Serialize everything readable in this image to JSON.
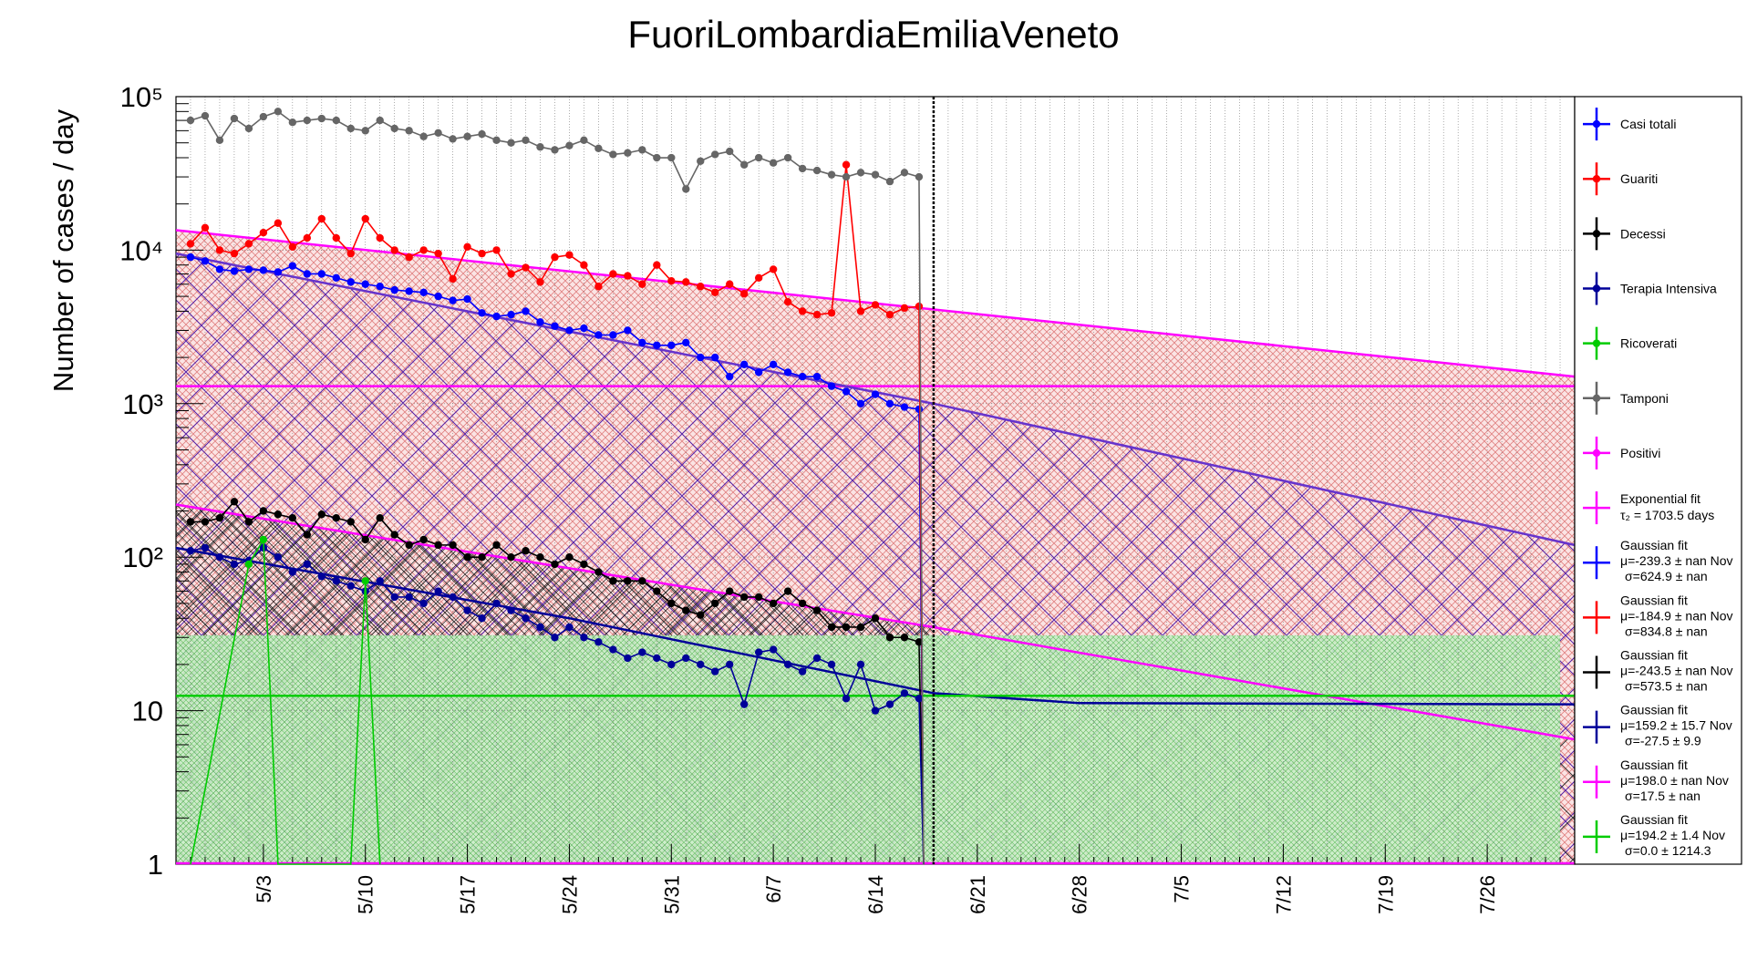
{
  "chart_data": {
    "type": "line",
    "title": "FuoriLombardiaEmiliaVeneto",
    "xlabel": "",
    "ylabel": "Number of cases / day",
    "y_scale": "log",
    "ylim": [
      1,
      100000
    ],
    "xlim": [
      "4/27",
      "8/1"
    ],
    "y_ticks": [
      "1",
      "10",
      "10²",
      "10³",
      "10⁴",
      "10⁵"
    ],
    "x_ticks": [
      "5/3",
      "5/10",
      "5/17",
      "5/24",
      "5/31",
      "6/7",
      "6/14",
      "6/21",
      "6/28",
      "7/5",
      "7/12",
      "7/19",
      "7/26"
    ],
    "grid": true,
    "legend_position": "right",
    "vertical_marker": "6/18",
    "series": [
      {
        "name": "Casi totali",
        "color": "#0000ff",
        "x": [
          "4/28",
          "4/29",
          "4/30",
          "5/1",
          "5/2",
          "5/3",
          "5/4",
          "5/5",
          "5/6",
          "5/7",
          "5/8",
          "5/9",
          "5/10",
          "5/11",
          "5/12",
          "5/13",
          "5/14",
          "5/15",
          "5/16",
          "5/17",
          "5/18",
          "5/19",
          "5/20",
          "5/21",
          "5/22",
          "5/23",
          "5/24",
          "5/25",
          "5/26",
          "5/27",
          "5/28",
          "5/29",
          "5/30",
          "5/31",
          "6/1",
          "6/2",
          "6/3",
          "6/4",
          "6/5",
          "6/6",
          "6/7",
          "6/8",
          "6/9",
          "6/10",
          "6/11",
          "6/12",
          "6/13",
          "6/14",
          "6/15",
          "6/16",
          "6/17"
        ],
        "y": [
          9000,
          8500,
          7500,
          7300,
          7500,
          7400,
          7200,
          7900,
          7000,
          7000,
          6600,
          6200,
          6000,
          5800,
          5500,
          5400,
          5300,
          5000,
          4700,
          4800,
          3900,
          3700,
          3800,
          4000,
          3400,
          3200,
          3000,
          3100,
          2800,
          2800,
          3000,
          2500,
          2400,
          2400,
          2500,
          2000,
          2000,
          1500,
          1800,
          1600,
          1800,
          1600,
          1500,
          1500,
          1300,
          1200,
          1000,
          1150,
          1000,
          950,
          920
        ]
      },
      {
        "name": "Guariti",
        "color": "#ff0000",
        "x": [
          "4/28",
          "4/29",
          "4/30",
          "5/1",
          "5/2",
          "5/3",
          "5/4",
          "5/5",
          "5/6",
          "5/7",
          "5/8",
          "5/9",
          "5/10",
          "5/11",
          "5/12",
          "5/13",
          "5/14",
          "5/15",
          "5/16",
          "5/17",
          "5/18",
          "5/19",
          "5/20",
          "5/21",
          "5/22",
          "5/23",
          "5/24",
          "5/25",
          "5/26",
          "5/27",
          "5/28",
          "5/29",
          "5/30",
          "5/31",
          "6/1",
          "6/2",
          "6/3",
          "6/4",
          "6/5",
          "6/6",
          "6/7",
          "6/8",
          "6/9",
          "6/10",
          "6/11",
          "6/12",
          "6/13",
          "6/14",
          "6/15",
          "6/16",
          "6/17"
        ],
        "y": [
          11000,
          14000,
          10000,
          9500,
          11000,
          13000,
          15000,
          10500,
          12000,
          16000,
          12000,
          9500,
          16000,
          12000,
          10000,
          9000,
          10000,
          9500,
          6500,
          10500,
          9500,
          10000,
          7000,
          7700,
          6200,
          9000,
          9300,
          8000,
          5800,
          7000,
          6800,
          6000,
          8000,
          6300,
          6200,
          5800,
          5300,
          6000,
          5200,
          6600,
          7500,
          4600,
          4000,
          3800,
          3900,
          36000,
          4000,
          4400,
          3800,
          4200,
          4300
        ]
      },
      {
        "name": "Decessi",
        "color": "#000000",
        "x": [
          "4/28",
          "4/29",
          "4/30",
          "5/1",
          "5/2",
          "5/3",
          "5/4",
          "5/5",
          "5/6",
          "5/7",
          "5/8",
          "5/9",
          "5/10",
          "5/11",
          "5/12",
          "5/13",
          "5/14",
          "5/15",
          "5/16",
          "5/17",
          "5/18",
          "5/19",
          "5/20",
          "5/21",
          "5/22",
          "5/23",
          "5/24",
          "5/25",
          "5/26",
          "5/27",
          "5/28",
          "5/29",
          "5/30",
          "5/31",
          "6/1",
          "6/2",
          "6/3",
          "6/4",
          "6/5",
          "6/6",
          "6/7",
          "6/8",
          "6/9",
          "6/10",
          "6/11",
          "6/12",
          "6/13",
          "6/14",
          "6/15",
          "6/16",
          "6/17"
        ],
        "y": [
          170,
          170,
          180,
          230,
          170,
          200,
          190,
          180,
          140,
          190,
          180,
          170,
          130,
          180,
          140,
          120,
          130,
          120,
          120,
          100,
          100,
          120,
          100,
          110,
          100,
          90,
          100,
          90,
          80,
          70,
          70,
          70,
          60,
          50,
          45,
          42,
          50,
          60,
          55,
          55,
          50,
          60,
          50,
          45,
          35,
          35,
          35,
          40,
          30,
          30,
          28
        ]
      },
      {
        "name": "Terapia Intensiva",
        "color": "#000099",
        "x": [
          "4/28",
          "4/29",
          "4/30",
          "5/1",
          "5/2",
          "5/3",
          "5/4",
          "5/5",
          "5/6",
          "5/7",
          "5/8",
          "5/9",
          "5/10",
          "5/11",
          "5/12",
          "5/13",
          "5/14",
          "5/15",
          "5/16",
          "5/17",
          "5/18",
          "5/19",
          "5/20",
          "5/21",
          "5/22",
          "5/23",
          "5/24",
          "5/25",
          "5/26",
          "5/27",
          "5/28",
          "5/29",
          "5/30",
          "5/31",
          "6/1",
          "6/2",
          "6/3",
          "6/4",
          "6/5",
          "6/6",
          "6/7",
          "6/8",
          "6/9",
          "6/10",
          "6/11",
          "6/12",
          "6/13",
          "6/14",
          "6/15",
          "6/16",
          "6/17"
        ],
        "y": [
          110,
          115,
          100,
          90,
          95,
          115,
          100,
          80,
          90,
          75,
          70,
          65,
          60,
          70,
          55,
          55,
          50,
          60,
          55,
          45,
          40,
          50,
          45,
          40,
          35,
          30,
          35,
          30,
          28,
          25,
          22,
          24,
          22,
          20,
          22,
          20,
          18,
          20,
          11,
          24,
          25,
          20,
          18,
          22,
          20,
          12,
          20,
          10,
          11,
          13,
          12
        ]
      },
      {
        "name": "Ricoverati",
        "color": "#00cc00",
        "x": [
          "4/28",
          "5/2",
          "5/3",
          "5/4",
          "5/9",
          "5/10",
          "5/11"
        ],
        "y": [
          1,
          90,
          130,
          1,
          1,
          70,
          1
        ]
      },
      {
        "name": "Tamponi",
        "color": "#666666",
        "x": [
          "4/28",
          "4/29",
          "4/30",
          "5/1",
          "5/2",
          "5/3",
          "5/4",
          "5/5",
          "5/6",
          "5/7",
          "5/8",
          "5/9",
          "5/10",
          "5/11",
          "5/12",
          "5/13",
          "5/14",
          "5/15",
          "5/16",
          "5/17",
          "5/18",
          "5/19",
          "5/20",
          "5/21",
          "5/22",
          "5/23",
          "5/24",
          "5/25",
          "5/26",
          "5/27",
          "5/28",
          "5/29",
          "5/30",
          "5/31",
          "6/1",
          "6/2",
          "6/3",
          "6/4",
          "6/5",
          "6/6",
          "6/7",
          "6/8",
          "6/9",
          "6/10",
          "6/11",
          "6/12",
          "6/13",
          "6/14",
          "6/15",
          "6/16",
          "6/17"
        ],
        "y": [
          70000,
          75000,
          52000,
          72000,
          62000,
          74000,
          80000,
          68000,
          70000,
          72000,
          70000,
          62000,
          60000,
          70000,
          62000,
          60000,
          55000,
          58000,
          53000,
          55000,
          57000,
          52000,
          50000,
          52000,
          47000,
          45000,
          48000,
          52000,
          46000,
          42000,
          43000,
          45000,
          40000,
          40000,
          25000,
          38000,
          42000,
          44000,
          36000,
          40000,
          37000,
          40000,
          34000,
          33000,
          31000,
          30000,
          32000,
          31000,
          28000,
          32000,
          30000
        ]
      }
    ],
    "fits": [
      {
        "name": "Exponential fit",
        "label": "τ₂ = 1703.5 days",
        "color": "#ff00ff",
        "x": [
          "4/27",
          "8/1"
        ],
        "y": [
          13500,
          1500
        ]
      },
      {
        "name": "Gaussian fit",
        "label": "μ=-239.3 ± nan Nov",
        "label2": "σ=624.9 ± nan",
        "color": "#0000ff"
      },
      {
        "name": "Gaussian fit",
        "label": "μ=-184.9 ± nan Nov",
        "label2": "σ=834.8 ± nan",
        "color": "#ff0000"
      },
      {
        "name": "Gaussian fit",
        "label": "μ=-243.5 ± nan Nov",
        "label2": "σ=573.5 ± nan",
        "color": "#000000"
      },
      {
        "name": "Gaussian fit",
        "label": "μ=159.2 ± 15.7 Nov",
        "label2": "σ=-27.5 ± 9.9",
        "color": "#000099"
      },
      {
        "name": "Gaussian fit",
        "label": "μ=198.0 ± nan Nov",
        "label2": "σ=17.5 ± nan",
        "color": "#ff00ff"
      },
      {
        "name": "Gaussian fit",
        "label": "μ=194.2 ± 1.4 Nov",
        "label2": "σ=0.0 ± 1214.3",
        "color": "#00cc00"
      }
    ],
    "fit_curves": [
      {
        "name": "positivi-fit",
        "color": "#ff00ff",
        "x": [
          "4/27",
          "8/1"
        ],
        "y": [
          13500,
          1500
        ]
      },
      {
        "name": "positivi-flat",
        "color": "#ff00ff",
        "x": [
          "4/27",
          "8/1"
        ],
        "y": [
          1300,
          1300
        ]
      },
      {
        "name": "casi-fit",
        "color": "#6633cc",
        "x": [
          "4/27",
          "6/18",
          "8/1"
        ],
        "y": [
          9500,
          1000,
          120
        ]
      },
      {
        "name": "decessi-fit",
        "color": "#ff00ff",
        "x": [
          "4/27",
          "6/18",
          "8/1"
        ],
        "y": [
          220,
          35,
          6.5
        ]
      },
      {
        "name": "terapia-fit",
        "color": "#000099",
        "x": [
          "4/27",
          "5/24",
          "6/18",
          "6/28",
          "8/1"
        ],
        "y": [
          115,
          40,
          13,
          11.2,
          11
        ]
      },
      {
        "name": "ricoverati-fit",
        "color": "#00cc00",
        "x": [
          "4/27",
          "8/1"
        ],
        "y": [
          12.5,
          12.5
        ]
      }
    ]
  },
  "legend": [
    {
      "label": "Casi totali",
      "color": "#0000ff",
      "marker": true
    },
    {
      "label": "Guariti",
      "color": "#ff0000",
      "marker": true
    },
    {
      "label": "Decessi",
      "color": "#000000",
      "marker": true
    },
    {
      "label": "Terapia Intensiva",
      "color": "#000099",
      "marker": true
    },
    {
      "label": "Ricoverati",
      "color": "#00cc00",
      "marker": true
    },
    {
      "label": "Tamponi",
      "color": "#666666",
      "marker": true
    },
    {
      "label": "Positivi",
      "color": "#ff00ff",
      "marker": true
    },
    {
      "label": "Exponential fit",
      "sub": "τ₂ = 1703.5 days",
      "color": "#ff00ff",
      "marker": false
    },
    {
      "label": "Gaussian fit",
      "sub": "μ=-239.3 ± nan Nov",
      "sub2": "σ=624.9 ± nan",
      "color": "#0000ff",
      "marker": false
    },
    {
      "label": "Gaussian fit",
      "sub": "μ=-184.9 ± nan Nov",
      "sub2": "σ=834.8 ± nan",
      "color": "#ff0000",
      "marker": false
    },
    {
      "label": "Gaussian fit",
      "sub": "μ=-243.5 ± nan Nov",
      "sub2": "σ=573.5 ± nan",
      "color": "#000000",
      "marker": false
    },
    {
      "label": "Gaussian fit",
      "sub": "μ=159.2 ± 15.7 Nov",
      "sub2": "σ=-27.5 ± 9.9",
      "color": "#000099",
      "marker": false
    },
    {
      "label": "Gaussian fit",
      "sub": "μ=198.0 ± nan Nov",
      "sub2": "σ=17.5 ± nan",
      "color": "#ff00ff",
      "marker": false
    },
    {
      "label": "Gaussian fit",
      "sub": "μ=194.2 ± 1.4 Nov",
      "sub2": "σ=0.0 ± 1214.3",
      "color": "#00cc00",
      "marker": false
    }
  ]
}
